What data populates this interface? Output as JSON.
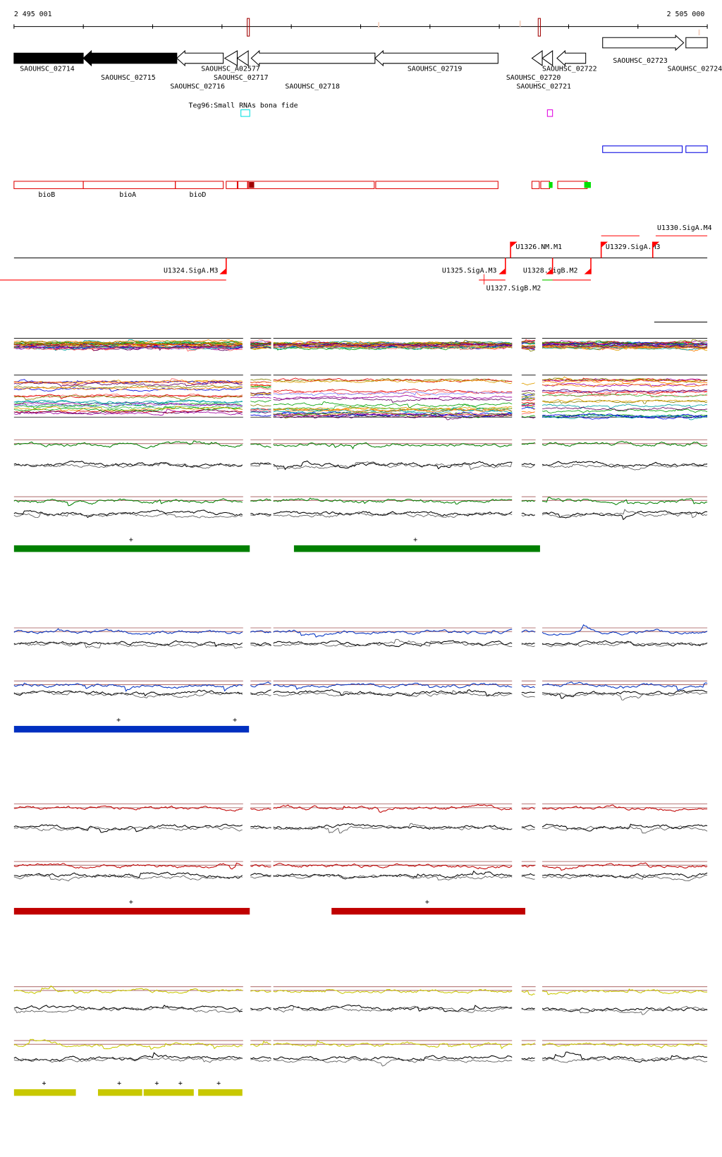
{
  "ruler": {
    "start_label": "2 495 001",
    "end_label": "2 505 000"
  },
  "genes": [
    {
      "name": "SAOUHSC_02714",
      "strand": "+",
      "filled": true
    },
    {
      "name": "SAOUHSC_02715",
      "strand": "-",
      "filled": true
    },
    {
      "name": "SAOUHSC_02716",
      "strand": "-",
      "filled": false
    },
    {
      "name": "SAOUHSC_A02577",
      "strand": "-",
      "filled": false
    },
    {
      "name": "SAOUHSC_02717",
      "strand": "-",
      "filled": false
    },
    {
      "name": "SAOUHSC_02718",
      "strand": "-",
      "filled": false
    },
    {
      "name": "SAOUHSC_02719",
      "strand": "-",
      "filled": false
    },
    {
      "name": "SAOUHSC_02720",
      "strand": "-",
      "filled": false
    },
    {
      "name": "SAOUHSC_02721",
      "strand": "-",
      "filled": false
    },
    {
      "name": "SAOUHSC_02722",
      "strand": "-",
      "filled": false
    },
    {
      "name": "SAOUHSC_02723",
      "strand": "+",
      "filled": false
    },
    {
      "name": "SAOUHSC_02724",
      "strand": "+",
      "filled": false
    }
  ],
  "small_rna": {
    "label": "Teg96:Small RNAs bona fide"
  },
  "operon_labels": [
    "bioB",
    "bioA",
    "bioD"
  ],
  "transcription_units": [
    "U1326.NM.M1",
    "U1329.SigA.M3",
    "U1330.SigA.M4",
    "U1324.SigA.M3",
    "U1325.SigA.M3",
    "U1327.SigB.M2",
    "U1328.SigB.M2"
  ],
  "colors": {
    "green": "#008000",
    "blue": "#0030c0",
    "red": "#c00000",
    "yellow": "#c8c800",
    "feature_red": "#ff0000"
  },
  "track_markers": {
    "plus": "+"
  }
}
